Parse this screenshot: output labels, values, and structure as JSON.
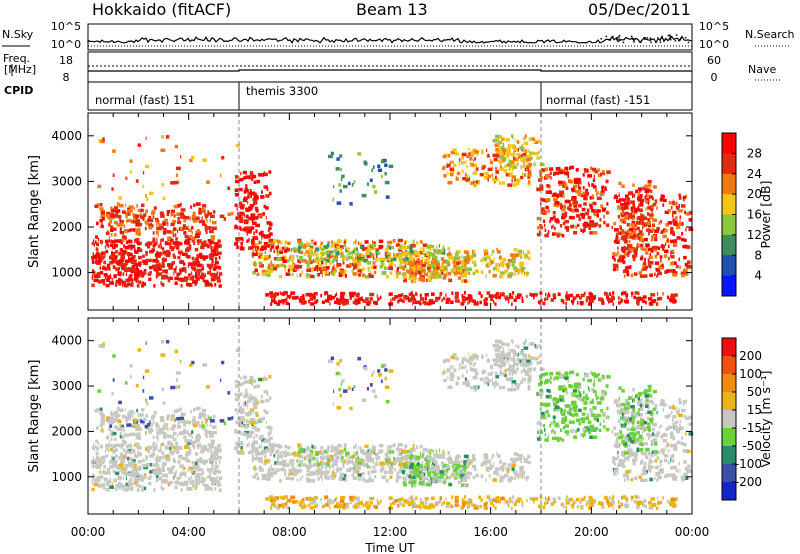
{
  "header": {
    "station": "Hokkaido (fitACF)",
    "beam": "Beam 13",
    "date": "05/Dec/2011"
  },
  "top_panel": {
    "nsky_label": "N.Sky",
    "nsearch_label": "N.Search",
    "nave_label": "Nave",
    "freq_label_1": "Freq.",
    "freq_label_2": "[MHz]",
    "cpid_label": "CPID",
    "noise_ticks": [
      "10^5",
      "10^0"
    ],
    "noise_ticks_right": [
      "10^5",
      "10^0"
    ],
    "freq_ticks": [
      "18",
      "8"
    ],
    "nave_ticks": [
      "60",
      "0"
    ],
    "cpid_segments": [
      {
        "label": "normal (fast) 151",
        "start_hour": 0,
        "end_hour": 6
      },
      {
        "label": "themis 3300",
        "start_hour": 6,
        "end_hour": 18
      },
      {
        "label": "normal (fast) -151",
        "start_hour": 18,
        "end_hour": 24
      }
    ]
  },
  "chart_data": [
    {
      "type": "heatmap",
      "title": "",
      "xlabel": "",
      "ylabel": "Slant Range [km]",
      "xlim": [
        0,
        24
      ],
      "ylim": [
        180,
        4500
      ],
      "yticks": [
        1000,
        2000,
        3000,
        4000
      ],
      "colorbar": {
        "label": "Power [dB]",
        "ticks": [
          "4",
          "8",
          "12",
          "16",
          "20",
          "24",
          "28"
        ],
        "colors": [
          "#0a14ff",
          "#1f4fb0",
          "#3f8c5e",
          "#8cc63c",
          "#f2c616",
          "#f07a12",
          "#e02a12",
          "#ff0000"
        ]
      }
    },
    {
      "type": "heatmap",
      "title": "",
      "xlabel": "Time UT",
      "ylabel": "Slant Range [km]",
      "xlim": [
        0,
        24
      ],
      "ylim": [
        180,
        4500
      ],
      "yticks": [
        1000,
        2000,
        3000,
        4000
      ],
      "xtick_labels": [
        "00:00",
        "04:00",
        "08:00",
        "12:00",
        "16:00",
        "20:00",
        "00:00"
      ],
      "colorbar": {
        "label": "Velocity [m s^-1]",
        "ticks": [
          "200",
          "100",
          "50",
          "15",
          "-15",
          "-50",
          "-100",
          "-200"
        ],
        "colors": [
          "#1226c8",
          "#3a4fa8",
          "#2a8c6a",
          "#6bd13a",
          "#c8c8c2",
          "#e8b418",
          "#f08a10",
          "#f05010",
          "#ee1010"
        ]
      }
    }
  ],
  "colors": {
    "frame": "#000000",
    "ground_scatter": "#c3c3be",
    "divider": "#8c8c8c"
  }
}
